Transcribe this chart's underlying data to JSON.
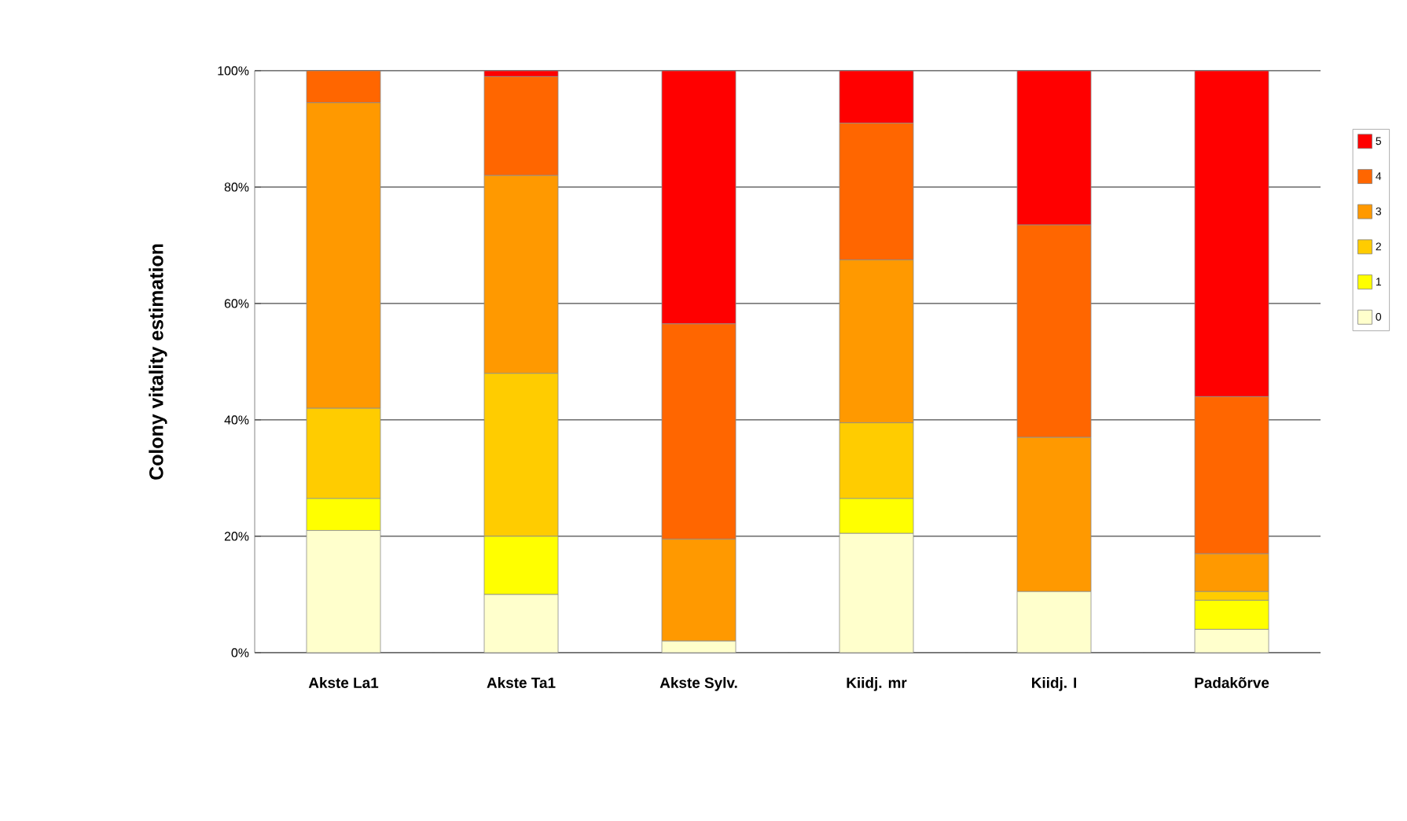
{
  "chart_data": {
    "type": "bar",
    "stacked": true,
    "ylabel": "Colony vitality estimation",
    "categories": [
      "Akste La1",
      "Akste Ta1",
      "Akste Sylv.",
      "Kiidj. mr",
      "Kiidj. I",
      "Padakõrve"
    ],
    "series": [
      {
        "name": "0",
        "color": "#ffffcc",
        "values": [
          21,
          10,
          2,
          20.5,
          10.5,
          4
        ]
      },
      {
        "name": "1",
        "color": "#ffff00",
        "values": [
          5.5,
          10,
          0,
          6,
          0,
          5
        ]
      },
      {
        "name": "2",
        "color": "#ffcc00",
        "values": [
          15.5,
          28,
          0,
          13,
          0,
          1.5
        ]
      },
      {
        "name": "3",
        "color": "#ff9900",
        "values": [
          52.5,
          34,
          17.5,
          28,
          26.5,
          6.5
        ]
      },
      {
        "name": "4",
        "color": "#ff6600",
        "values": [
          5.5,
          17,
          37,
          23.5,
          36.5,
          27
        ]
      },
      {
        "name": "5",
        "color": "#ff0000",
        "values": [
          0,
          1,
          43.5,
          9,
          26.5,
          56
        ]
      }
    ],
    "ylim": [
      0,
      100
    ],
    "yticks": [
      {
        "value": 0,
        "label": "0%"
      },
      {
        "value": 20,
        "label": "20%"
      },
      {
        "value": 40,
        "label": "40%"
      },
      {
        "value": 60,
        "label": "60%"
      },
      {
        "value": 80,
        "label": "80%"
      },
      {
        "value": 100,
        "label": "100%"
      }
    ],
    "grid": "y",
    "legend": "right"
  }
}
